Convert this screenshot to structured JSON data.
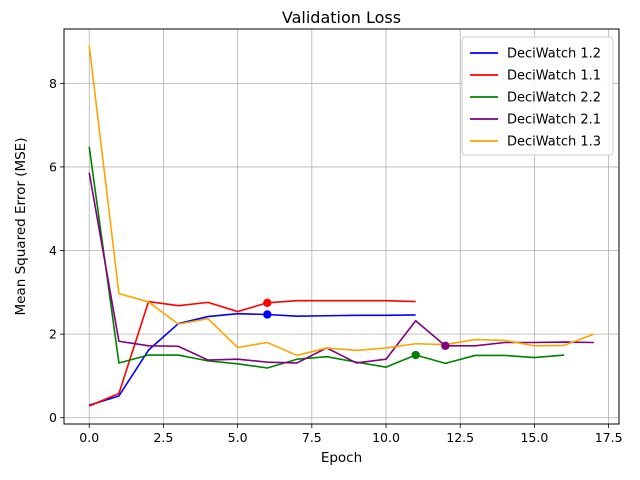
{
  "chart_data": {
    "type": "line",
    "title": "Validation Loss",
    "xlabel": "Epoch",
    "ylabel": "Mean Squared Error (MSE)",
    "xlim": [
      -0.85,
      17.85
    ],
    "ylim": [
      -0.15,
      9.3
    ],
    "xticks": [
      0.0,
      2.5,
      5.0,
      7.5,
      10.0,
      12.5,
      15.0,
      17.5
    ],
    "xtick_labels": [
      "0.0",
      "2.5",
      "5.0",
      "7.5",
      "10.0",
      "12.5",
      "15.0",
      "17.5"
    ],
    "yticks": [
      0,
      2,
      4,
      6,
      8
    ],
    "ytick_labels": [
      "0",
      "2",
      "4",
      "6",
      "8"
    ],
    "grid": true,
    "legend_position": "top-right",
    "series": [
      {
        "name": "DeciWatch 1.2",
        "color": "#0000ff",
        "x": [
          0,
          1,
          2,
          3,
          4,
          5,
          6,
          7,
          8,
          9,
          10,
          11
        ],
        "y": [
          0.3,
          0.52,
          1.62,
          2.25,
          2.42,
          2.49,
          2.47,
          2.43,
          2.44,
          2.45,
          2.45,
          2.46
        ],
        "marker": {
          "x": 6,
          "y": 2.47
        }
      },
      {
        "name": "DeciWatch 1.1",
        "color": "#ff0000",
        "x": [
          0,
          1,
          2,
          3,
          4,
          5,
          6,
          7,
          8,
          9,
          10,
          11
        ],
        "y": [
          0.28,
          0.58,
          2.78,
          2.68,
          2.76,
          2.54,
          2.75,
          2.8,
          2.8,
          2.8,
          2.8,
          2.78
        ],
        "marker": {
          "x": 6,
          "y": 2.75
        }
      },
      {
        "name": "DeciWatch 2.2",
        "color": "#008000",
        "x": [
          0,
          1,
          2,
          3,
          4,
          5,
          6,
          7,
          8,
          9,
          10,
          11,
          12,
          13,
          14,
          15,
          16
        ],
        "y": [
          6.48,
          1.31,
          1.5,
          1.5,
          1.36,
          1.29,
          1.19,
          1.4,
          1.46,
          1.33,
          1.21,
          1.5,
          1.3,
          1.49,
          1.49,
          1.44,
          1.5
        ],
        "marker": {
          "x": 11,
          "y": 1.5
        }
      },
      {
        "name": "DeciWatch 2.1",
        "color": "#800080",
        "x": [
          0,
          1,
          2,
          3,
          4,
          5,
          6,
          7,
          8,
          9,
          10,
          11,
          12,
          13,
          14,
          15,
          16,
          17
        ],
        "y": [
          5.86,
          1.83,
          1.72,
          1.71,
          1.38,
          1.4,
          1.33,
          1.31,
          1.67,
          1.31,
          1.4,
          2.32,
          1.72,
          1.72,
          1.8,
          1.8,
          1.81,
          1.8
        ],
        "marker": {
          "x": 12,
          "y": 1.72
        }
      },
      {
        "name": "DeciWatch 1.3",
        "color": "#ffa500",
        "x": [
          0,
          1,
          2,
          3,
          4,
          5,
          6,
          7,
          8,
          9,
          10,
          11,
          12,
          13,
          14,
          15,
          16,
          17
        ],
        "y": [
          8.9,
          2.97,
          2.77,
          2.24,
          2.37,
          1.68,
          1.8,
          1.49,
          1.67,
          1.61,
          1.67,
          1.77,
          1.75,
          1.87,
          1.85,
          1.72,
          1.73,
          2.0
        ],
        "marker": null
      }
    ]
  }
}
